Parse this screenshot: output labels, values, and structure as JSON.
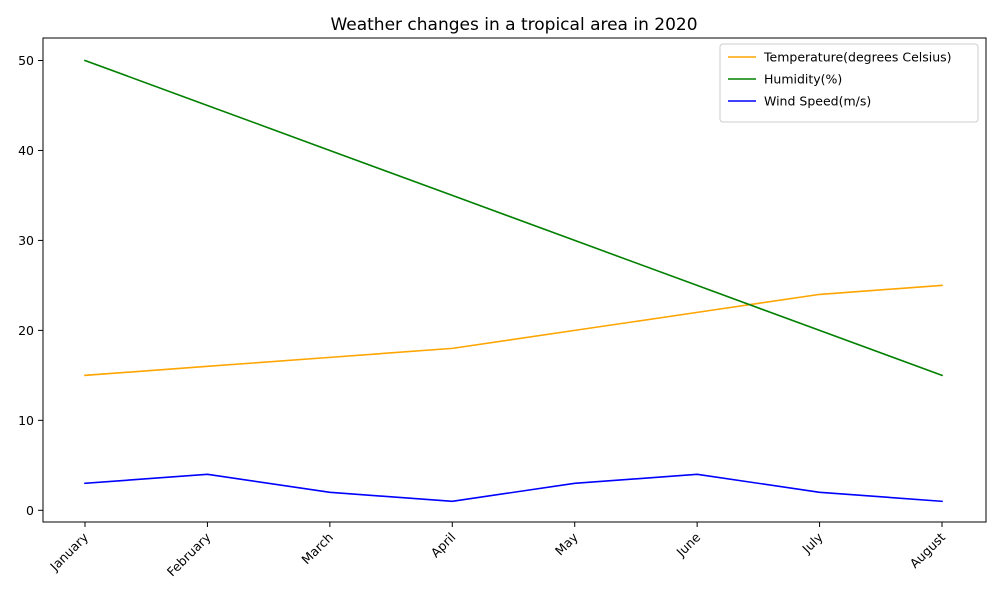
{
  "chart_data": {
    "type": "line",
    "title": "Weather changes in a tropical area in 2020",
    "xlabel": "",
    "ylabel": "",
    "categories": [
      "January",
      "February",
      "March",
      "April",
      "May",
      "June",
      "July",
      "August"
    ],
    "ylim": [
      -1.3,
      52.5
    ],
    "yticks": [
      0,
      10,
      20,
      30,
      40,
      50
    ],
    "grid": false,
    "legend_position": "top-right",
    "series": [
      {
        "name": "Temperature(degrees Celsius)",
        "color": "#ffa500",
        "values": [
          15,
          16,
          17,
          18,
          20,
          22,
          24,
          25
        ]
      },
      {
        "name": "Humidity(%)",
        "color": "#008000",
        "values": [
          50,
          45,
          40,
          35,
          30,
          25,
          20,
          15
        ]
      },
      {
        "name": "Wind Speed(m/s)",
        "color": "#0000ff",
        "values": [
          3,
          4,
          2,
          1,
          3,
          4,
          2,
          1
        ]
      }
    ]
  }
}
